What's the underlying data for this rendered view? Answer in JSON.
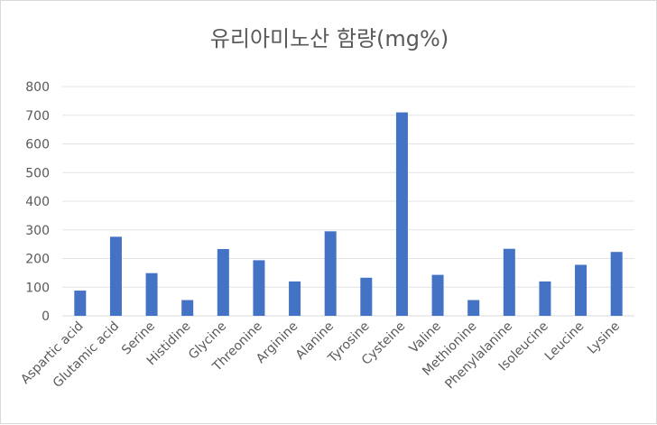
{
  "chart_data": {
    "type": "bar",
    "title": "유리아미노산 함량(mg%)",
    "xlabel": "",
    "ylabel": "",
    "ylim": [
      0,
      800
    ],
    "yticks": [
      0,
      100,
      200,
      300,
      400,
      500,
      600,
      700,
      800
    ],
    "grid": true,
    "legend": "none",
    "bar_color": "#4472c4",
    "categories": [
      "Aspartic acid",
      "Glutamic acid",
      "Serine",
      "Histidine",
      "Glycine",
      "Threonine",
      "Arginine",
      "Alanine",
      "Tyrosine",
      "Cysteine",
      "Valine",
      "Methionine",
      "Phenylalanine",
      "Isoleucine",
      "Leucine",
      "Lysine"
    ],
    "values": [
      88,
      276,
      149,
      55,
      233,
      194,
      120,
      295,
      133,
      710,
      143,
      55,
      234,
      120,
      178,
      223
    ]
  }
}
